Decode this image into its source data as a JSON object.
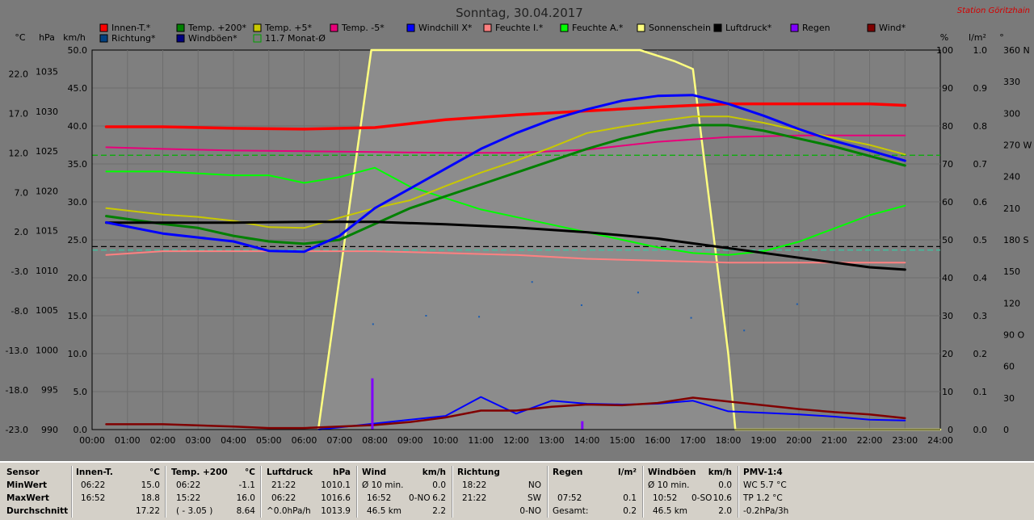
{
  "chart_data": {
    "type": "line",
    "title": "Sonntag, 30.04.2017",
    "station": "Station Göritzhain",
    "x_unit_labels": [
      "00:00",
      "01:00",
      "02:00",
      "03:00",
      "04:00",
      "05:00",
      "06:00",
      "07:00",
      "08:00",
      "09:00",
      "10:00",
      "11:00",
      "12:00",
      "13:00",
      "14:00",
      "15:00",
      "16:00",
      "17:00",
      "18:00",
      "19:00",
      "20:00",
      "21:00",
      "22:00",
      "23:00",
      "24:00"
    ],
    "xlim": [
      0,
      24
    ],
    "axes": {
      "temp_c": {
        "unit": "°C",
        "ticks": [
          -23.0,
          -18.0,
          -13.0,
          -8.0,
          -3.0,
          2.0,
          7.0,
          12.0,
          17.0,
          22.0
        ],
        "ylim": [
          -23,
          25
        ]
      },
      "pressure_hpa": {
        "unit": "hPa",
        "ticks": [
          990,
          995,
          1000,
          1005,
          1010,
          1015,
          1020,
          1025,
          1030,
          1035
        ],
        "ylim": [
          990,
          1037.7
        ]
      },
      "speed_kmh": {
        "unit": "km/h",
        "ticks": [
          "0.0",
          "5.0",
          "10.0",
          "15.0",
          "20.0",
          "25.0",
          "30.0",
          "35.0",
          "40.0",
          "45.0",
          "50.0"
        ],
        "ylim": [
          0,
          50
        ]
      },
      "percent": {
        "unit": "%",
        "ticks": [
          "0",
          "10",
          "20",
          "30",
          "40",
          "50",
          "60",
          "70",
          "80",
          "90",
          "100"
        ],
        "ylim": [
          0,
          100
        ]
      },
      "rain_lm2": {
        "unit": "l/m²",
        "ticks": [
          "0.0",
          "0.1",
          "0.2",
          "0.3",
          "0.4",
          "0.5",
          "0.6",
          "0.7",
          "0.8",
          "0.9",
          "1.0"
        ],
        "ylim": [
          0,
          1
        ]
      },
      "direction_deg": {
        "unit": "°",
        "ticks": [
          "0",
          "30",
          "60",
          "90 O",
          "120",
          "150",
          "180 S",
          "210",
          "240",
          "270 W",
          "300",
          "330",
          "360 N"
        ],
        "ylim": [
          0,
          360
        ]
      }
    },
    "legend": [
      {
        "name": "Innen-T.*",
        "color": "#ff0000"
      },
      {
        "name": "Temp. +200*",
        "color": "#008000"
      },
      {
        "name": "Temp. +5*",
        "color": "#c8c800"
      },
      {
        "name": "Temp. -5*",
        "color": "#e8007a"
      },
      {
        "name": "Windchill X*",
        "color": "#0000ff"
      },
      {
        "name": "Feuchte I.*",
        "color": "#ff8080"
      },
      {
        "name": "Feuchte A.*",
        "color": "#00ff00"
      },
      {
        "name": "Sonnenschein",
        "color": "#ffff80"
      },
      {
        "name": "Luftdruck*",
        "color": "#000000"
      },
      {
        "name": "Regen",
        "color": "#8000ff"
      },
      {
        "name": "Wind*",
        "color": "#800000"
      },
      {
        "name": "Richtung*",
        "color": "#004080"
      },
      {
        "name": "Windböen*",
        "color": "#000080"
      },
      {
        "name": "11.7 Monat-Ø",
        "color": "#00a000"
      }
    ],
    "month_avg_c": 11.7,
    "series": [
      {
        "name": "Innen-T.*",
        "axis": "temp_c",
        "color": "#ff0000",
        "width": 3.5,
        "x": [
          0.4,
          2,
          4,
          6,
          8,
          10,
          12,
          14,
          16,
          17,
          18,
          20,
          22,
          23
        ],
        "y": [
          15.3,
          15.3,
          15.1,
          15.0,
          15.2,
          16.2,
          16.8,
          17.3,
          17.8,
          18.0,
          18.2,
          18.2,
          18.2,
          18.0
        ]
      },
      {
        "name": "Temp. +200*",
        "axis": "temp_c",
        "color": "#008000",
        "width": 3,
        "x": [
          0.4,
          2,
          3,
          4,
          5,
          6,
          7,
          8,
          9,
          10,
          11,
          12,
          13,
          14,
          15,
          16,
          17,
          18,
          19,
          20,
          21,
          22,
          23
        ],
        "y": [
          4.0,
          3.0,
          2.5,
          1.5,
          0.8,
          0.5,
          1.0,
          3.0,
          5.0,
          6.5,
          8.0,
          9.5,
          11.0,
          12.5,
          13.8,
          14.8,
          15.5,
          15.5,
          14.8,
          13.8,
          12.8,
          11.6,
          10.4
        ]
      },
      {
        "name": "Temp. +5*",
        "axis": "temp_c",
        "color": "#c8c800",
        "width": 2,
        "x": [
          0.4,
          2,
          3,
          4,
          5,
          6,
          7,
          8,
          9,
          10,
          11,
          12,
          13,
          14,
          15,
          16,
          17,
          18,
          19,
          20,
          21,
          22,
          23
        ],
        "y": [
          5.0,
          4.2,
          3.9,
          3.4,
          2.6,
          2.5,
          3.8,
          5.0,
          6.0,
          7.8,
          9.5,
          11.0,
          12.7,
          14.5,
          15.3,
          16.0,
          16.6,
          16.6,
          15.8,
          14.8,
          13.9,
          13.0,
          11.8
        ]
      },
      {
        "name": "Temp. -5*",
        "axis": "temp_c",
        "color": "#e8007a",
        "width": 2,
        "x": [
          0.4,
          2,
          4,
          6,
          8,
          10,
          12,
          14,
          16,
          18,
          20,
          22,
          23
        ],
        "y": [
          12.7,
          12.5,
          12.3,
          12.2,
          12.1,
          12.0,
          12.0,
          12.4,
          13.4,
          14.0,
          14.2,
          14.2,
          14.2
        ]
      },
      {
        "name": "Windchill X*",
        "axis": "temp_c",
        "color": "#0000ff",
        "width": 3,
        "x": [
          0.4,
          2,
          3,
          4,
          5,
          6,
          7,
          8,
          9,
          10,
          11,
          12,
          13,
          14,
          15,
          16,
          17,
          18,
          19,
          20,
          21,
          22,
          23
        ],
        "y": [
          3.2,
          1.8,
          1.3,
          0.8,
          -0.4,
          -0.5,
          1.5,
          5.0,
          7.5,
          10.0,
          12.5,
          14.5,
          16.2,
          17.5,
          18.6,
          19.2,
          19.3,
          18.2,
          16.7,
          15.0,
          13.5,
          12.3,
          11.0
        ]
      },
      {
        "name": "Feuchte I.*",
        "axis": "percent",
        "color": "#ff8080",
        "width": 2,
        "x": [
          0.4,
          2,
          4,
          6,
          8,
          10,
          12,
          14,
          16,
          18,
          20,
          22,
          23
        ],
        "y": [
          46.0,
          47.0,
          47.0,
          47.0,
          47.0,
          46.5,
          46.0,
          45.0,
          44.5,
          44.0,
          44.0,
          44.0,
          44.0
        ]
      },
      {
        "name": "Feuchte A.*",
        "axis": "percent",
        "color": "#00ff00",
        "width": 2,
        "x": [
          0.4,
          2,
          4,
          5,
          6,
          7,
          8,
          9,
          10,
          11,
          12,
          13,
          14,
          15,
          16,
          17,
          18,
          19,
          20,
          21,
          22,
          23
        ],
        "y": [
          68.0,
          68.0,
          67.0,
          67.0,
          65.0,
          66.5,
          69.0,
          64.0,
          61.0,
          58.0,
          56.0,
          54.0,
          52.0,
          50.0,
          48.0,
          46.5,
          46.0,
          47.0,
          49.5,
          53.0,
          56.5,
          59.0
        ]
      },
      {
        "name": "Sonnenschein",
        "axis": "percent",
        "color": "#ffff80",
        "width": 2.5,
        "x": [
          6.4,
          7.9,
          14.0,
          15.5,
          16.5,
          17.0,
          18.0,
          18.2,
          20.0,
          24.0
        ],
        "y": [
          0,
          100,
          100,
          100,
          97,
          95,
          20,
          0,
          0,
          0
        ]
      },
      {
        "name": "Luftdruck*",
        "axis": "pressure_hpa",
        "color": "#000000",
        "width": 3,
        "x": [
          0.4,
          2,
          4,
          6,
          8,
          10,
          12,
          14,
          16,
          18,
          20,
          22,
          23
        ],
        "y": [
          1016.0,
          1016.0,
          1016.0,
          1016.1,
          1016.1,
          1015.8,
          1015.4,
          1014.8,
          1014.0,
          1012.8,
          1011.6,
          1010.4,
          1010.1
        ]
      },
      {
        "name": "Wind*",
        "axis": "speed_kmh",
        "color": "#800000",
        "width": 2.5,
        "x": [
          0.4,
          2,
          4,
          5,
          6,
          7,
          8,
          9,
          10,
          11,
          12,
          13,
          14,
          15,
          16,
          17,
          18,
          19,
          20,
          21,
          22,
          23
        ],
        "y": [
          0.7,
          0.7,
          0.4,
          0.2,
          0.2,
          0.4,
          0.6,
          1.0,
          1.6,
          2.5,
          2.5,
          3.0,
          3.3,
          3.2,
          3.5,
          4.2,
          3.7,
          3.2,
          2.7,
          2.3,
          2.0,
          1.5
        ]
      },
      {
        "name": "Windböen*",
        "axis": "speed_kmh",
        "color": "#0000ff",
        "width": 2,
        "x": [
          6.4,
          7,
          8,
          9,
          10,
          11,
          12,
          13,
          14,
          15,
          16,
          17,
          18,
          19,
          20,
          21,
          22,
          23
        ],
        "y": [
          0.0,
          0.3,
          0.8,
          1.3,
          1.8,
          4.3,
          2.1,
          3.8,
          3.4,
          3.3,
          3.4,
          3.8,
          2.4,
          2.2,
          2.0,
          1.7,
          1.3,
          1.2
        ]
      }
    ],
    "rain_bars": [
      {
        "x": 7.93,
        "value": 0.135
      },
      {
        "x": 13.87,
        "value": 0.022
      }
    ],
    "direction_points": {
      "axis": "direction_deg",
      "x": [
        7.95,
        9.45,
        10.95,
        12.45,
        13.85,
        15.45,
        16.95,
        18.45,
        19.95
      ],
      "y": [
        100,
        108,
        107,
        140,
        118,
        130,
        106,
        94,
        119
      ]
    },
    "dashed_lines": [
      {
        "name": "11.7 Monat-Ø",
        "axis": "temp_c",
        "value": 11.7,
        "color": "#00b000"
      },
      {
        "name": "Luftdruck-ref",
        "axis": "pressure_hpa",
        "value": 1013.0,
        "color": "#000000"
      },
      {
        "name": "Feuchte-ref",
        "axis": "percent",
        "value": 47.3,
        "color": "#40c0a0"
      }
    ]
  },
  "table": {
    "sensor": {
      "head": "Sensor",
      "min": "MinWert",
      "max": "MaxWert",
      "avg": "Durchschnitt"
    },
    "innen": {
      "head": "Innen-T.",
      "unit": "°C",
      "min_time": "06:22",
      "min_val": "15.0",
      "max_time": "16:52",
      "max_val": "18.8",
      "avg_val": "17.22"
    },
    "temp200": {
      "head": "Temp. +200",
      "unit": "°C",
      "min_time": "06:22",
      "min_val": "-1.1",
      "max_time": "15:22",
      "max_val": "16.0",
      "avg_note": "( - 3.05 )",
      "avg_val": "8.64"
    },
    "druck": {
      "head": "Luftdruck",
      "unit": "hPa",
      "min_time": "21:22",
      "min_val": "1010.1",
      "max_time": "06:22",
      "max_val": "1016.6",
      "avg_note": "^0.0hPa/h",
      "avg_val": "1013.9"
    },
    "wind": {
      "head": "Wind",
      "unit": "km/h",
      "min_time": "Ø 10 min.",
      "min_val": "0.0",
      "max_time": "16:52",
      "max_dir": "0-NO",
      "max_val": "6.2",
      "avg_note": "46.5 km",
      "avg_val": "2.2"
    },
    "richtung": {
      "head": "Richtung",
      "min_time": "18:22",
      "min_val": "NO",
      "max_time": "21:22",
      "max_val": "SW",
      "avg_val": "0-NO"
    },
    "regen": {
      "head": "Regen",
      "unit": "l/m²",
      "max_time": "07:52",
      "max_val": "0.1",
      "avg_note": "Gesamt:",
      "avg_val": "0.2"
    },
    "boeen": {
      "head": "Windböen",
      "unit": "km/h",
      "min_time": "Ø 10 min.",
      "min_val": "0.0",
      "max_time": "10:52",
      "max_dir": "0-SO",
      "max_val": "10.6",
      "avg_note": "46.5 km",
      "avg_val": "2.0"
    },
    "pmv": {
      "head": "PMV-1:4",
      "min": "WC 5.7 °C",
      "max": "TP 1.2 °C",
      "avg": "-0.2hPa/3h"
    }
  }
}
